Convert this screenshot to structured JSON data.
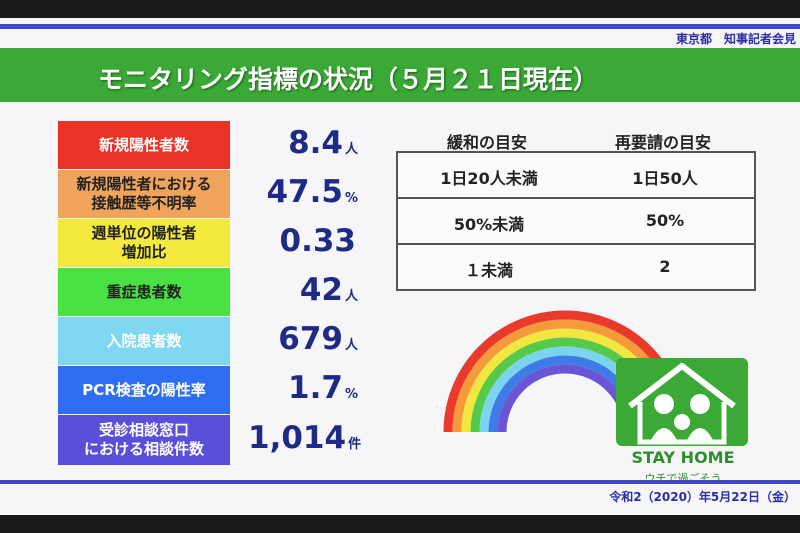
{
  "header": {
    "organizer": "東京都　知事記者会見",
    "title": "モニタリング指標の状況（５月２１日現在）"
  },
  "indicators": [
    {
      "label": "新規陽性者数",
      "value": "8.4",
      "unit": "人",
      "color": "#ea3326"
    },
    {
      "label": "新規陽性者における\n接触歴等不明率",
      "value": "47.5",
      "unit": "%",
      "color": "#f0a35a"
    },
    {
      "label": "週単位の陽性者\n増加比",
      "value": "0.33",
      "unit": "",
      "color": "#f3ea3d"
    },
    {
      "label": "重症患者数",
      "value": "42",
      "unit": "人",
      "color": "#49e044"
    },
    {
      "label": "入院患者数",
      "value": "679",
      "unit": "人",
      "color": "#7fd7f2"
    },
    {
      "label": "PCR検査の陽性率",
      "value": "1.7",
      "unit": "%",
      "color": "#2f6ef0"
    },
    {
      "label": "受診相談窓口\nにおける相談件数",
      "value": "1,014",
      "unit": "件",
      "color": "#5a4fd8"
    }
  ],
  "table": {
    "headers": [
      "緩和の目安",
      "再要請の目安"
    ],
    "rows": [
      [
        "1日20人未満",
        "1日50人"
      ],
      [
        "50%未満",
        "50%"
      ],
      [
        "１未満",
        "2"
      ]
    ]
  },
  "stay_home": {
    "title": "STAY HOME",
    "subtitle": "ウチで過ごそう"
  },
  "footer": {
    "date": "令和2（2020）年5月22日（金）"
  },
  "colors": {
    "title_bar": "#3aa935",
    "stripe": "#3d47c8",
    "value_text": "#1d2a86"
  }
}
